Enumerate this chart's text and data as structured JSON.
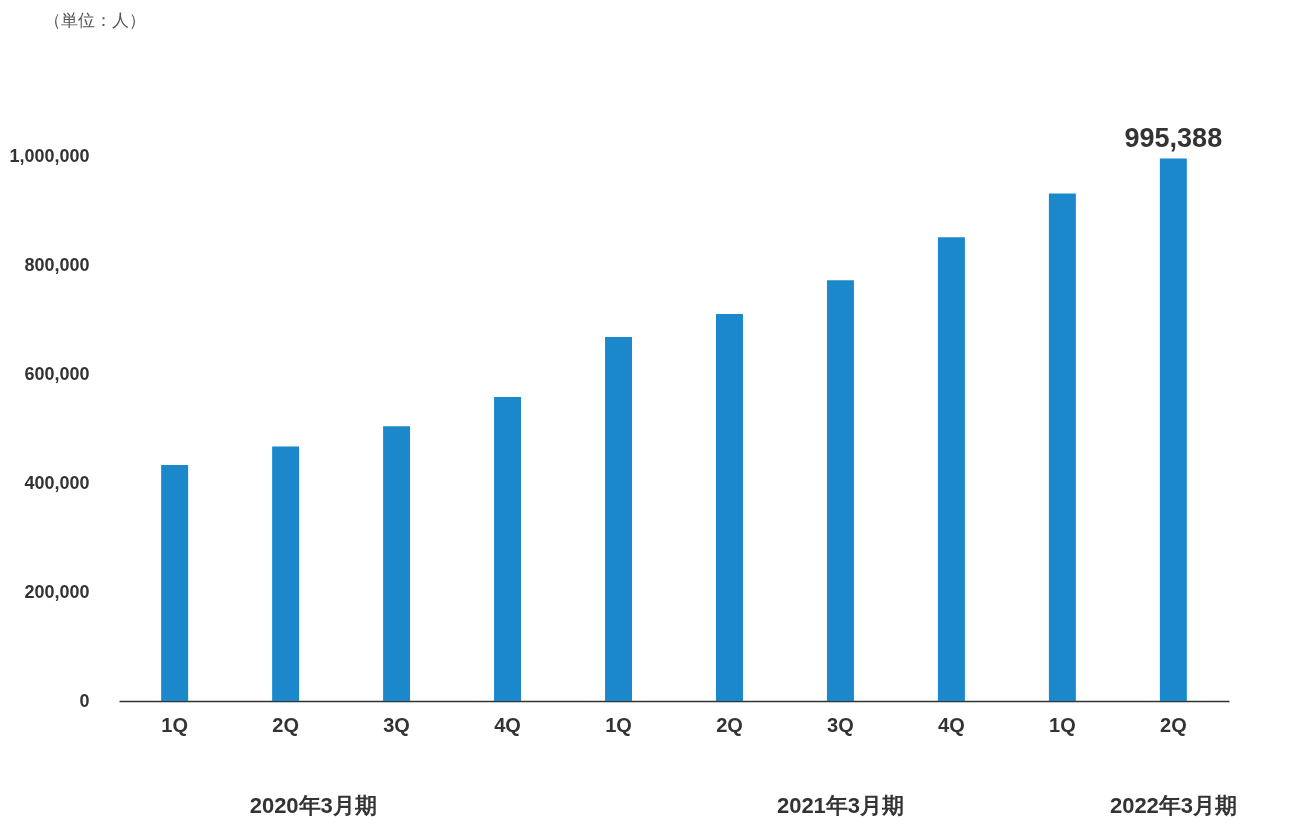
{
  "chart_data": {
    "type": "bar",
    "categories": [
      "1Q",
      "2Q",
      "3Q",
      "4Q",
      "1Q",
      "2Q",
      "3Q",
      "4Q",
      "1Q",
      "2Q"
    ],
    "series": [
      {
        "color": "#1b88cc",
        "values": [
          433000,
          467000,
          504000,
          558000,
          668000,
          710000,
          772000,
          851000,
          931000,
          995388
        ],
        "value_labels": [
          null,
          null,
          null,
          null,
          null,
          null,
          null,
          null,
          null,
          "995,388"
        ]
      }
    ],
    "ylim": [
      0,
      1000000
    ],
    "yticks": [
      {
        "value": 0,
        "label": "0"
      },
      {
        "value": 200000,
        "label": "200,000"
      },
      {
        "value": 400000,
        "label": "400,000"
      },
      {
        "value": 600000,
        "label": "600,000"
      },
      {
        "value": 800000,
        "label": "800,000"
      },
      {
        "value": 1000000,
        "label": "1,000,000"
      }
    ],
    "grid": false,
    "annotations": [
      "（単位：人）",
      "2020年3月期",
      "2021年3月期",
      "2022年3月期"
    ]
  }
}
